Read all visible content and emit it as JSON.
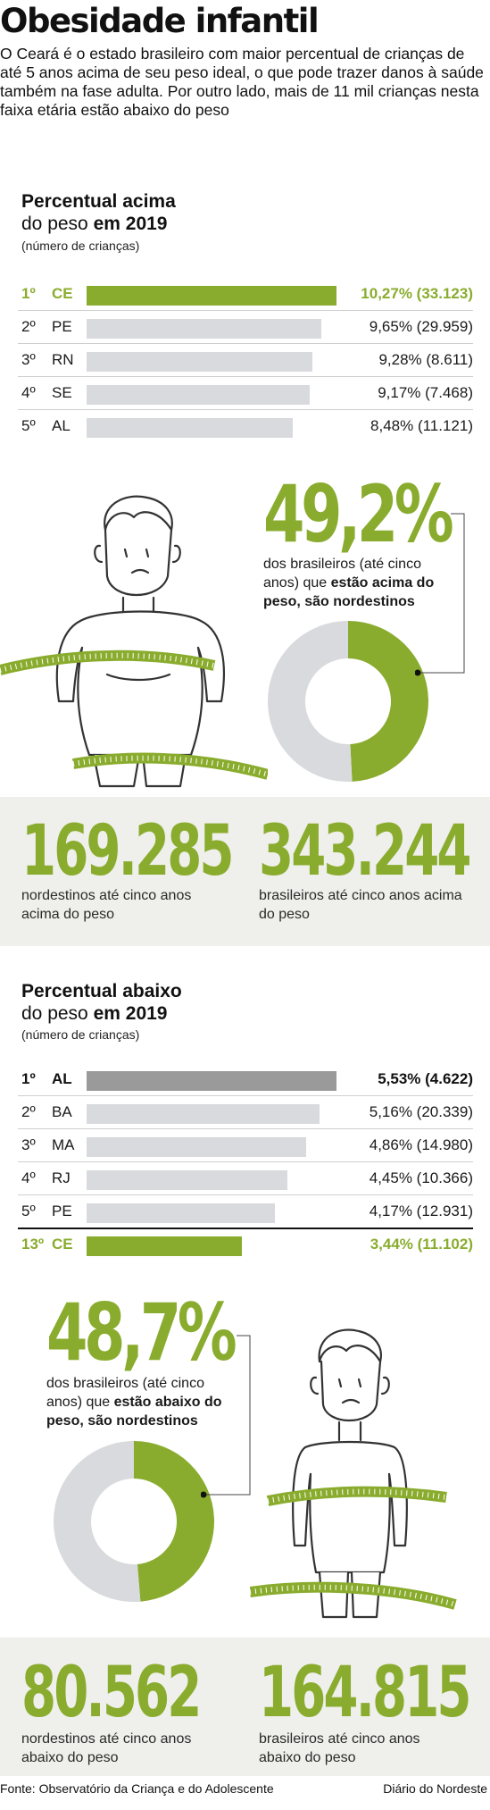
{
  "header": {
    "title": "Obesidade infantil",
    "intro": "O Ceará é o estado brasileiro com maior percentual de crianças de até 5 anos acima de seu peso ideal, o que pode trazer danos à saúde também na fase adulta. Por outro lado, mais de 11 mil crianças nesta faixa etária estão abaixo do peso"
  },
  "above": {
    "title_bold": "Percentual acima",
    "title_line2": "do peso ",
    "title_line2_bold": "em 2019",
    "subtitle": "(número de crianças)",
    "big_pct": "49,2%",
    "desc_plain": "dos brasileiros (até cinco anos) que ",
    "desc_bold": "estão acima do peso, são nordestinos",
    "stat1_value": "169.285",
    "stat1_desc": "nordestinos até cinco anos acima do peso",
    "stat2_value": "343.244",
    "stat2_desc": "brasileiros até cinco anos acima do peso"
  },
  "below": {
    "title_bold": "Percentual abaixo",
    "title_line2": "do peso ",
    "title_line2_bold": "em 2019",
    "subtitle": "(número de crianças)",
    "big_pct": "48,7%",
    "desc_plain": "dos brasileiros (até cinco anos) que ",
    "desc_bold": "estão abaixo do peso, são nordestinos",
    "stat1_value": "80.562",
    "stat1_desc": "nordestinos até cinco anos abaixo do peso",
    "stat2_value": "164.815",
    "stat2_desc": "brasileiros até cinco anos abaixo do peso"
  },
  "footer": {
    "source": "Fonte: Observatório da Criança e do Adolescente",
    "credit": "Diário do Nordeste"
  },
  "colors": {
    "accent": "#8aac2e",
    "bar_gray": "#d9dadd",
    "bar_dark": "#9a9a9a",
    "donut_gray": "#d9dadd",
    "panel": "#efefeb"
  },
  "chart_data": [
    {
      "type": "bar",
      "orientation": "horizontal",
      "categories": [
        "CE",
        "PE",
        "RN",
        "SE",
        "AL"
      ],
      "ranks": [
        "1º",
        "2º",
        "3º",
        "4º",
        "5º"
      ],
      "values": [
        10.27,
        9.65,
        9.28,
        9.17,
        8.48
      ],
      "labels": [
        "10,27% (33.123)",
        "9,65% (29.959)",
        "9,28% (8.611)",
        "9,17% (7.468)",
        "8,48% (11.121)"
      ],
      "xlim": [
        0,
        10.27
      ]
    },
    {
      "type": "pie",
      "donut": true,
      "values": [
        49.2,
        50.8
      ]
    },
    {
      "type": "bar",
      "orientation": "horizontal",
      "categories": [
        "AL",
        "BA",
        "MA",
        "RJ",
        "PE",
        "CE"
      ],
      "ranks": [
        "1º",
        "2º",
        "3º",
        "4º",
        "5º",
        "13º"
      ],
      "values": [
        5.53,
        5.16,
        4.86,
        4.45,
        4.17,
        3.44
      ],
      "labels": [
        "5,53% (4.622)",
        "5,16% (20.339)",
        "4,86% (14.980)",
        "4,45% (10.366)",
        "4,17% (12.931)",
        "3,44% (11.102)"
      ],
      "xlim": [
        0,
        5.53
      ]
    },
    {
      "type": "pie",
      "donut": true,
      "values": [
        48.7,
        51.3
      ]
    }
  ]
}
